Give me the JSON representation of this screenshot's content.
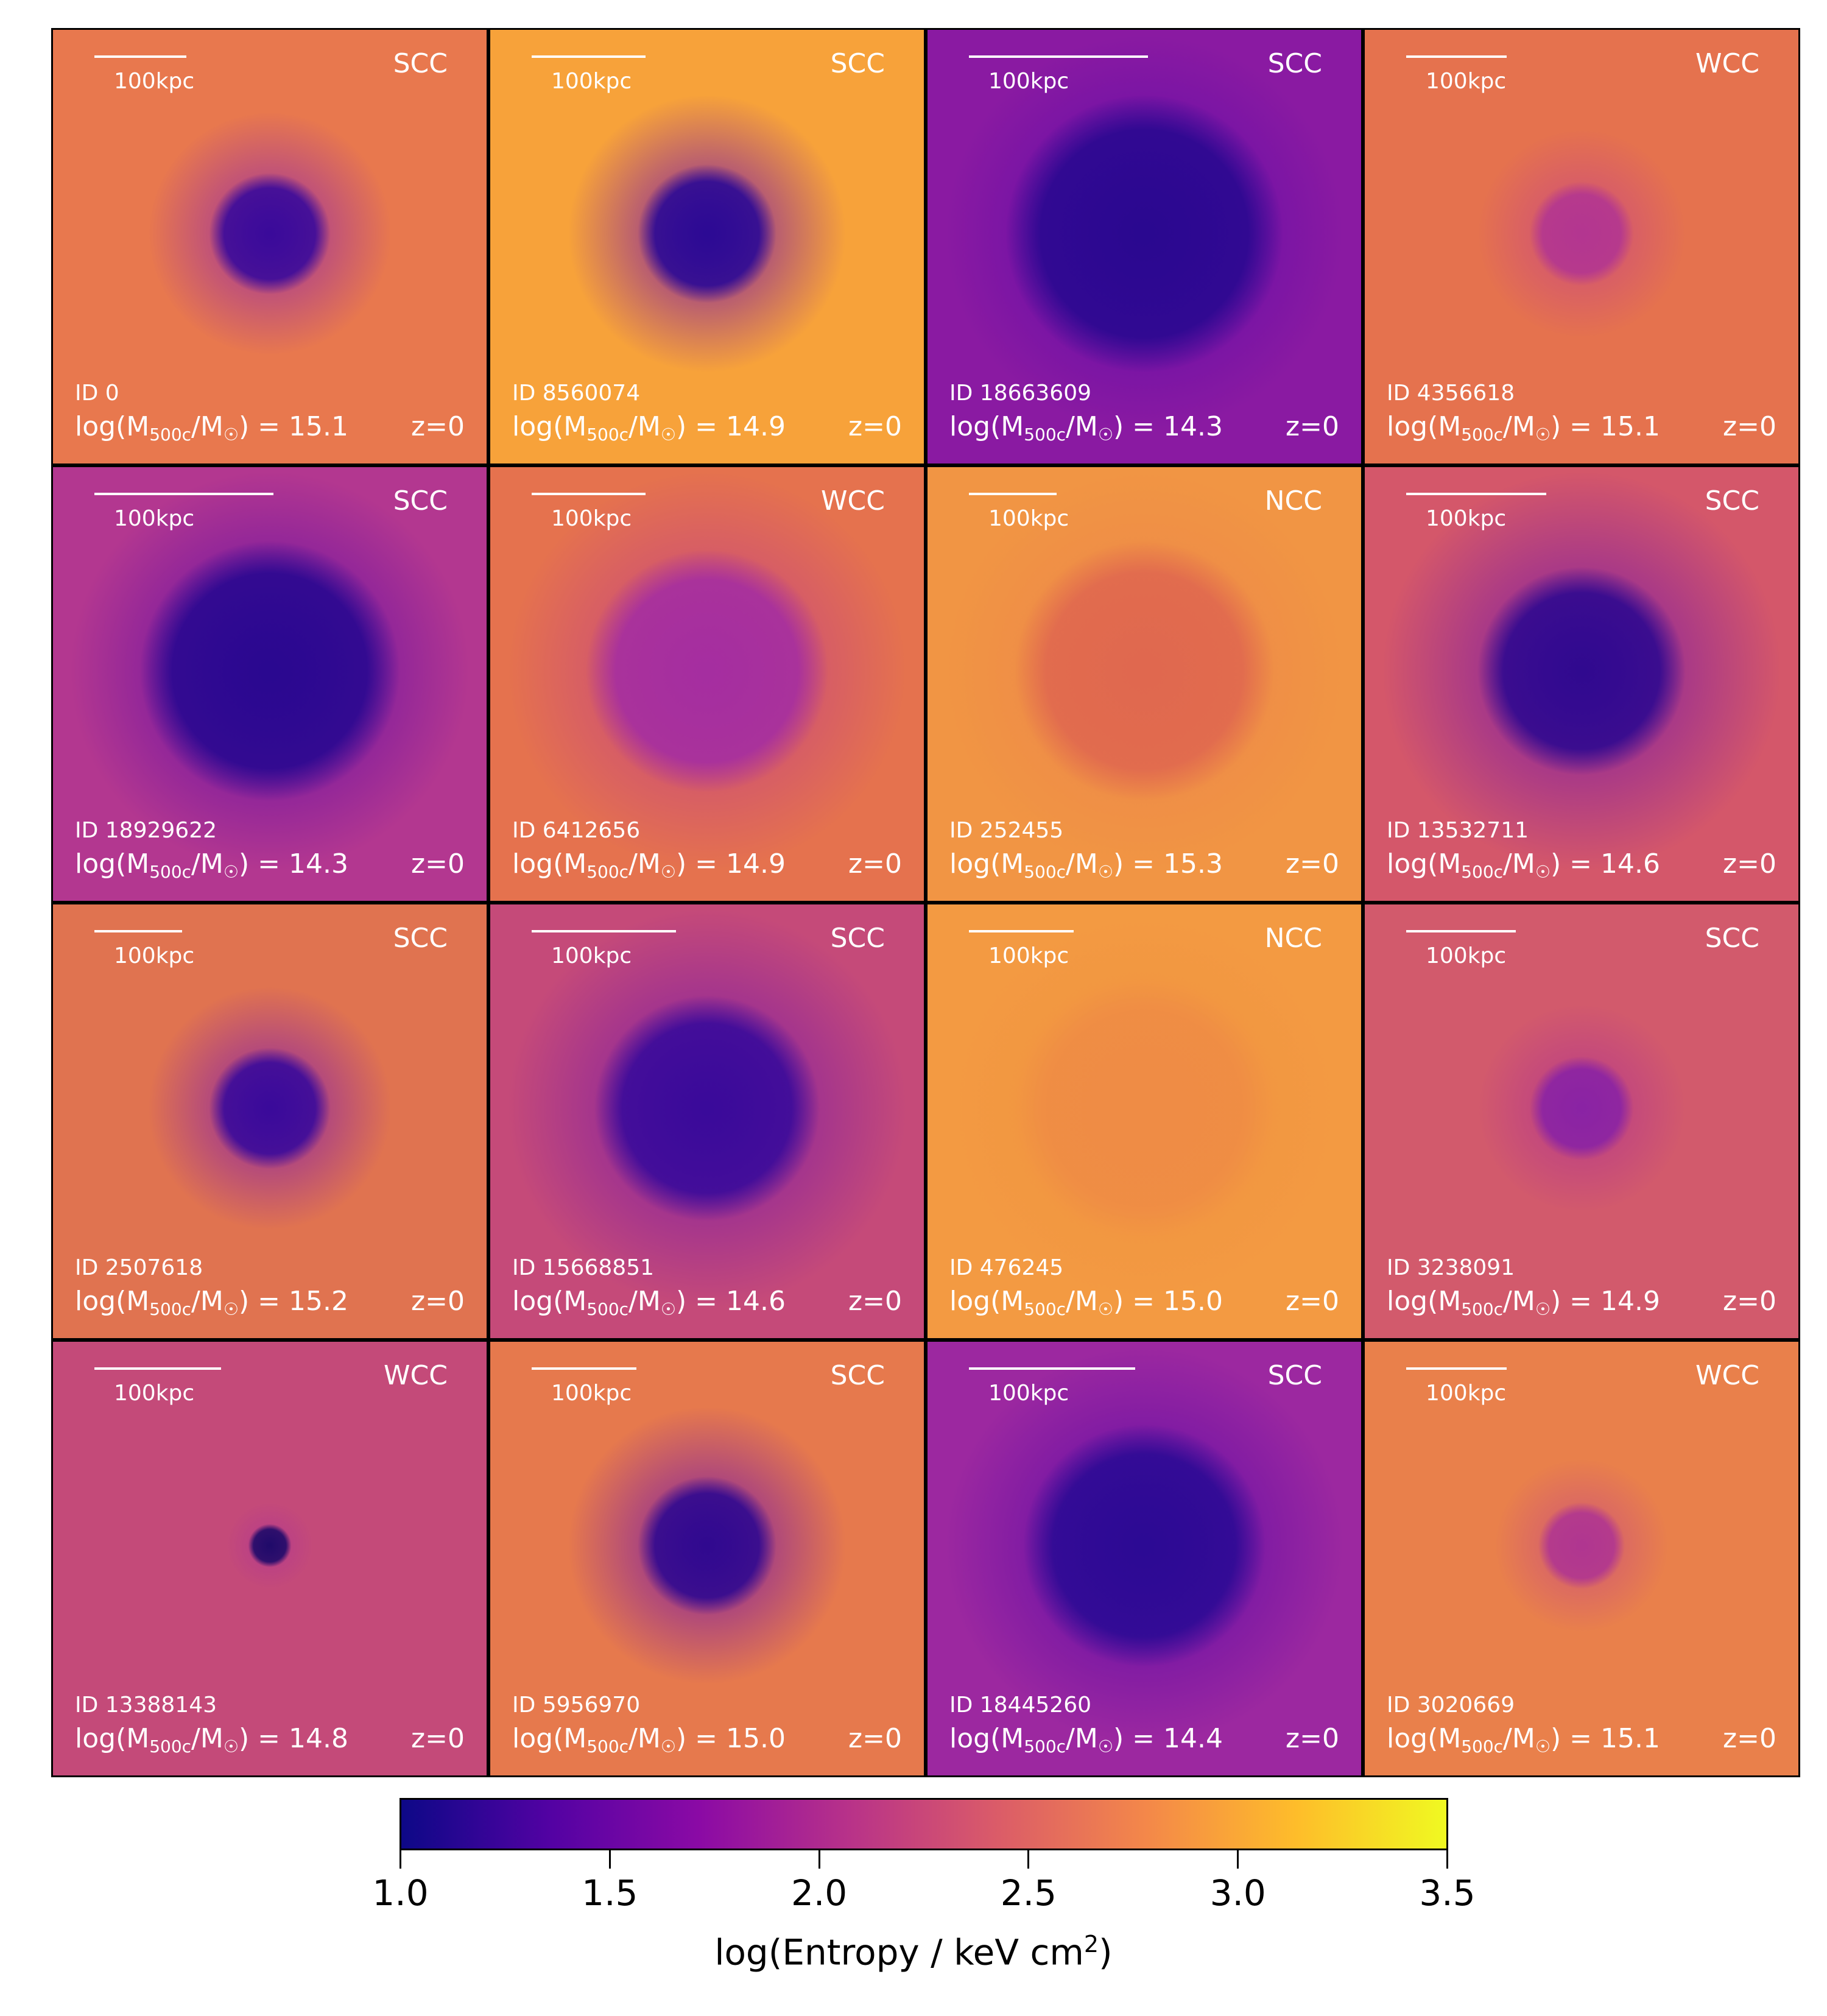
{
  "scale_label": "100kpc",
  "redshift_label": "z=0",
  "mass_label_parts": {
    "prefix": "log(M",
    "sub": "500c",
    "mid": "/M",
    "sun": "☉",
    "suffix": ") = "
  },
  "panels": [
    {
      "cc": "SCC",
      "id": "ID 0",
      "mass": "15.1",
      "scalebar_frac": 0.21,
      "bg": "#e8784e",
      "core": "#3a0a9a",
      "core_r": 0.14,
      "halo": "#9a2ea0"
    },
    {
      "cc": "SCC",
      "id": "ID 8560074",
      "mass": "14.9",
      "scalebar_frac": 0.26,
      "bg": "#f7a23a",
      "core": "#2c0a94",
      "core_r": 0.16,
      "halo": "#7a1aa6"
    },
    {
      "cc": "SCC",
      "id": "ID 18663609",
      "mass": "14.3",
      "scalebar_frac": 0.41,
      "bg": "#8a1aa2",
      "core": "#2a0890",
      "core_r": 0.32,
      "halo": "#5a0aa8"
    },
    {
      "cc": "WCC",
      "id": "ID 4356618",
      "mass": "15.1",
      "scalebar_frac": 0.23,
      "bg": "#e5724e",
      "core": "#b33690",
      "core_r": 0.12,
      "halo": "#cc4c7c"
    },
    {
      "cc": "SCC",
      "id": "ID 18929622",
      "mass": "14.3",
      "scalebar_frac": 0.41,
      "bg": "#b33790",
      "core": "#2a0890",
      "core_r": 0.3,
      "halo": "#5a0aa8"
    },
    {
      "cc": "WCC",
      "id": "ID 6412656",
      "mass": "14.9",
      "scalebar_frac": 0.26,
      "bg": "#e5724e",
      "core": "#a52ea0",
      "core_r": 0.28,
      "halo": "#c13f87"
    },
    {
      "cc": "NCC",
      "id": "ID 252455",
      "mass": "15.3",
      "scalebar_frac": 0.2,
      "bg": "#f19544",
      "core": "#e0684f",
      "core_r": 0.3,
      "halo": "#ec8449"
    },
    {
      "cc": "SCC",
      "id": "ID 13532711",
      "mass": "14.6",
      "scalebar_frac": 0.32,
      "bg": "#d4576a",
      "core": "#30098f",
      "core_r": 0.24,
      "halo": "#7a19a6"
    },
    {
      "cc": "SCC",
      "id": "ID 2507618",
      "mass": "15.2",
      "scalebar_frac": 0.2,
      "bg": "#e07350",
      "core": "#3a0a9a",
      "core_r": 0.14,
      "halo": "#8a23a4"
    },
    {
      "cc": "SCC",
      "id": "ID 15668851",
      "mass": "14.6",
      "scalebar_frac": 0.33,
      "bg": "#c54a79",
      "core": "#3a0a9a",
      "core_r": 0.26,
      "halo": "#7a1aa6"
    },
    {
      "cc": "NCC",
      "id": "ID 476245",
      "mass": "15.0",
      "scalebar_frac": 0.24,
      "bg": "#f39a42",
      "core": "#ef8c45",
      "core_r": 0.3,
      "halo": "#f1923f"
    },
    {
      "cc": "SCC",
      "id": "ID 3238091",
      "mass": "14.9",
      "scalebar_frac": 0.25,
      "bg": "#d25a6c",
      "core": "#8a23a4",
      "core_r": 0.12,
      "halo": "#b73a8a"
    },
    {
      "cc": "WCC",
      "id": "ID 13388143",
      "mass": "14.8",
      "scalebar_frac": 0.29,
      "bg": "#c44a79",
      "core": "#1f0a6a",
      "core_r": 0.05,
      "halo": "#b53b8c"
    },
    {
      "cc": "SCC",
      "id": "ID 5956970",
      "mass": "15.0",
      "scalebar_frac": 0.24,
      "bg": "#e6794d",
      "core": "#30098f",
      "core_r": 0.16,
      "halo": "#7a1aa6"
    },
    {
      "cc": "SCC",
      "id": "ID 18445260",
      "mass": "14.4",
      "scalebar_frac": 0.38,
      "bg": "#9c28a0",
      "core": "#2c0a94",
      "core_r": 0.28,
      "halo": "#5a0aa8"
    },
    {
      "cc": "WCC",
      "id": "ID 3020669",
      "mass": "15.1",
      "scalebar_frac": 0.23,
      "bg": "#e9804b",
      "core": "#b03690",
      "core_r": 0.1,
      "halo": "#cf5676"
    }
  ],
  "colorbar": {
    "label_prefix": "log(Entropy / keV cm",
    "label_sup": "2",
    "label_suffix": ")",
    "vmin": 1.0,
    "vmax": 3.5,
    "ticks": [
      {
        "value": 1.0,
        "label": "1.0"
      },
      {
        "value": 1.5,
        "label": "1.5"
      },
      {
        "value": 2.0,
        "label": "2.0"
      },
      {
        "value": 2.5,
        "label": "2.5"
      },
      {
        "value": 3.0,
        "label": "3.0"
      },
      {
        "value": 3.5,
        "label": "3.5"
      }
    ],
    "colormap": "plasma",
    "stops": [
      "#0d0887",
      "#5302a3",
      "#8b0aa5",
      "#b83289",
      "#db5c68",
      "#f48849",
      "#febd2a",
      "#f0f921"
    ]
  }
}
